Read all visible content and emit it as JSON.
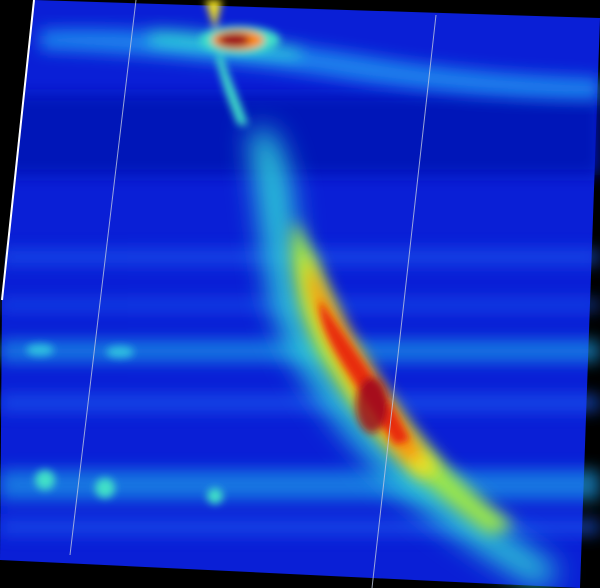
{
  "image": {
    "description_free": true,
    "colormap": [
      "#00008a",
      "#0a1fd6",
      "#1e5cf0",
      "#1fb0e6",
      "#3fe0c8",
      "#9be84a",
      "#f0e020",
      "#ff8a10",
      "#e82a10",
      "#9a0a20",
      "#600030"
    ],
    "background_color": "#000000",
    "field_color": "#0a1fd6"
  }
}
